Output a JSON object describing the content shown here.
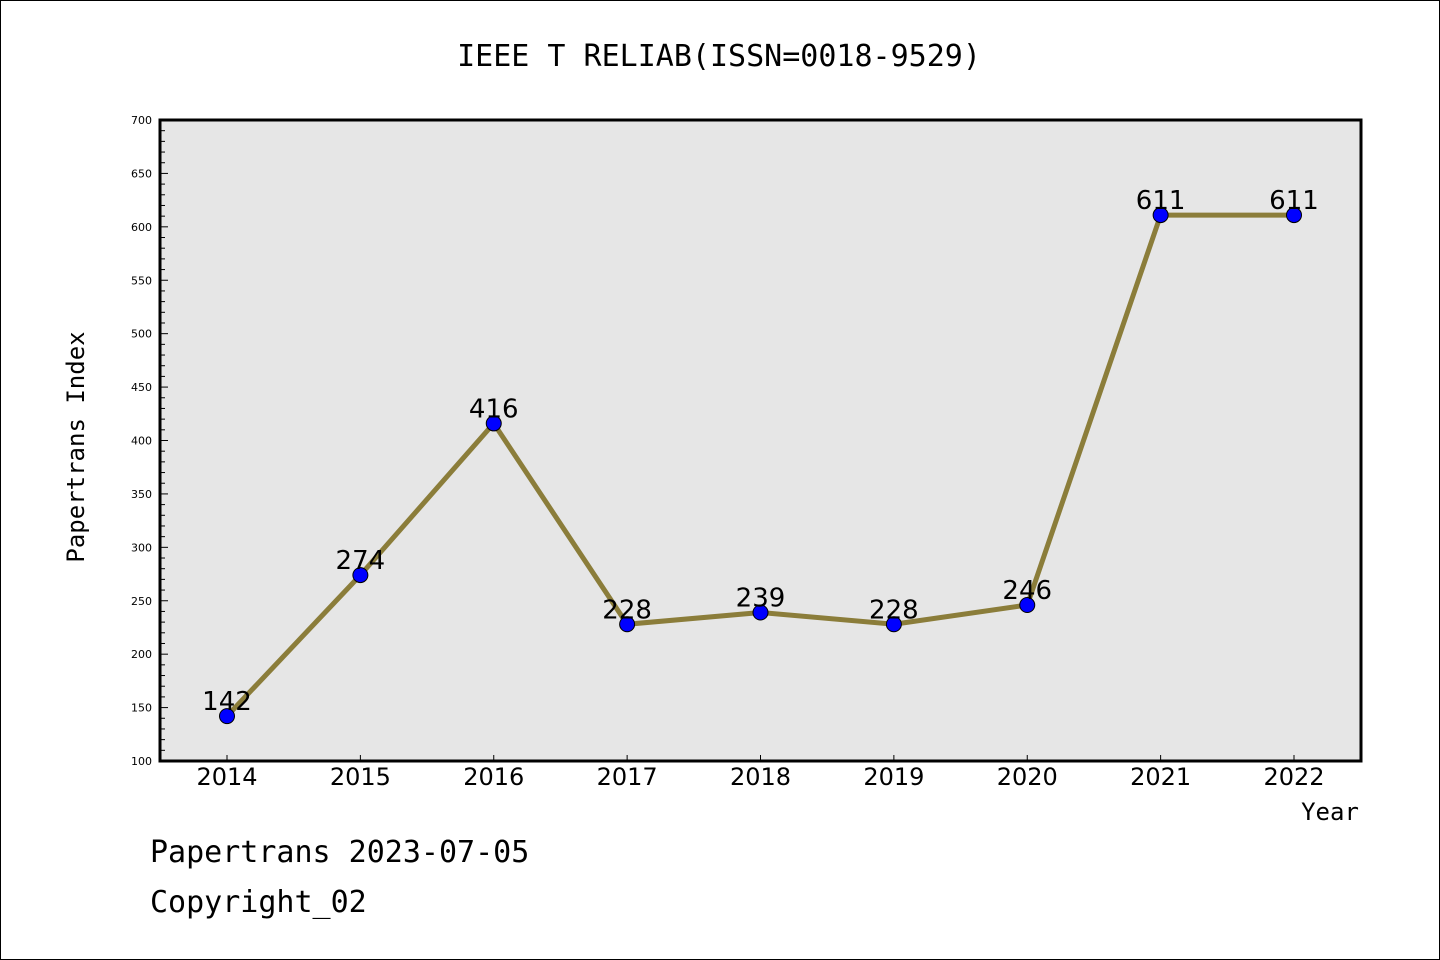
{
  "chart_data": {
    "type": "line",
    "title": "IEEE T RELIAB(ISSN=0018-9529)",
    "xlabel": "Year",
    "ylabel": "Papertrans Index",
    "categories": [
      "2014",
      "2015",
      "2016",
      "2017",
      "2018",
      "2019",
      "2020",
      "2021",
      "2022"
    ],
    "series": [
      {
        "values": [
          142,
          274,
          416,
          228,
          239,
          228,
          246,
          611,
          611
        ]
      }
    ],
    "data_labels": [
      "142",
      "274",
      "416",
      "228",
      "239",
      "228",
      "246",
      "611",
      "611"
    ],
    "ylim": [
      100,
      700
    ],
    "yticks": [
      100,
      150,
      200,
      250,
      300,
      350,
      400,
      450,
      500,
      550,
      600,
      650,
      700
    ],
    "grid": false,
    "line_color": "#8B7D3A",
    "marker_color": "#0000FF",
    "plot_background": "#E6E6E6"
  },
  "footer": {
    "line1": "Papertrans 2023-07-05",
    "line2": "Copyright_02"
  }
}
